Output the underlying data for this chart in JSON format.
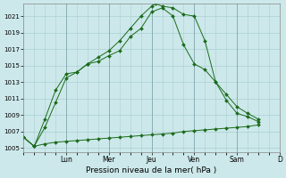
{
  "xlabel": "Pression niveau de la mer( hPa )",
  "background_color": "#cce8ea",
  "grid_color": "#aacfd4",
  "line_color": "#1a6b1a",
  "ylim": [
    1004.5,
    1022.5
  ],
  "yticks": [
    1005,
    1007,
    1009,
    1011,
    1013,
    1015,
    1017,
    1019,
    1021
  ],
  "xlim": [
    0,
    11.5
  ],
  "day_labels": [
    "Lun",
    "Mer",
    "Jeu",
    "Ven",
    "Sam",
    "D"
  ],
  "day_positions": [
    2,
    4,
    6,
    8,
    10,
    12
  ],
  "vline_positions": [
    2,
    4,
    6,
    8,
    10
  ],
  "series_flat": {
    "x": [
      0.0,
      0.5,
      1.0,
      1.5,
      2.0,
      2.5,
      3.0,
      3.5,
      4.0,
      4.5,
      5.0,
      5.5,
      6.0,
      6.5,
      7.0,
      7.5,
      8.0,
      8.5,
      9.0,
      9.5,
      10.0,
      10.5,
      11.0
    ],
    "y": [
      1006.3,
      1005.2,
      1005.5,
      1005.7,
      1005.8,
      1005.9,
      1006.0,
      1006.1,
      1006.2,
      1006.3,
      1006.4,
      1006.5,
      1006.6,
      1006.7,
      1006.8,
      1007.0,
      1007.1,
      1007.2,
      1007.3,
      1007.4,
      1007.5,
      1007.6,
      1007.8
    ]
  },
  "series_mid": {
    "x": [
      0.0,
      0.5,
      1.0,
      1.5,
      2.0,
      2.5,
      3.0,
      3.5,
      4.0,
      4.5,
      5.0,
      5.5,
      6.0,
      6.5,
      7.0,
      7.5,
      8.0,
      8.5,
      9.0,
      9.5,
      10.0,
      10.5,
      11.0
    ],
    "y": [
      1006.3,
      1005.2,
      1007.5,
      1010.5,
      1013.5,
      1014.2,
      1015.2,
      1015.5,
      1016.2,
      1016.8,
      1018.5,
      1019.5,
      1021.5,
      1022.0,
      1021.0,
      1017.5,
      1015.2,
      1014.5,
      1013.0,
      1011.5,
      1010.0,
      1009.2,
      1008.5
    ]
  },
  "series_top": {
    "x": [
      0.0,
      0.5,
      1.0,
      1.5,
      2.0,
      2.5,
      3.0,
      3.5,
      4.0,
      4.5,
      5.0,
      5.5,
      6.0,
      6.2,
      6.5,
      7.0,
      7.5,
      8.0,
      8.5,
      9.0,
      9.5,
      10.0,
      10.5,
      11.0
    ],
    "y": [
      1006.3,
      1005.2,
      1008.5,
      1012.0,
      1014.0,
      1014.2,
      1015.2,
      1016.0,
      1016.8,
      1018.0,
      1019.5,
      1021.0,
      1022.2,
      1022.5,
      1022.2,
      1022.0,
      1021.2,
      1021.0,
      1018.0,
      1013.0,
      1010.8,
      1009.2,
      1008.8,
      1008.2
    ]
  }
}
